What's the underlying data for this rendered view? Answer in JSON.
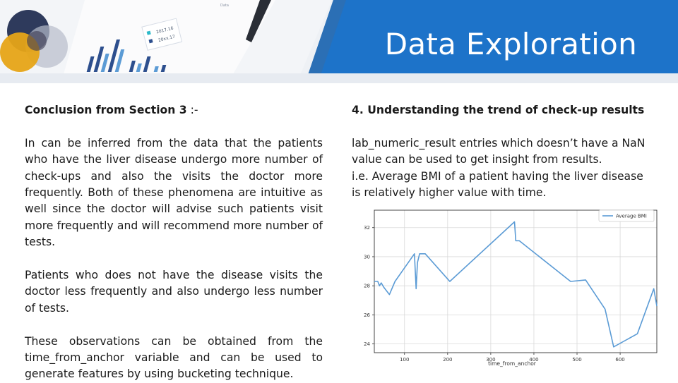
{
  "slide": {
    "title": "Data Exploration",
    "left": {
      "heading_bold": "Conclusion from Section 3",
      "heading_suffix": " :-",
      "para1": "In can be inferred from the data that the patients who have the liver disease undergo more number of check-ups and also the visits the doctor more frequently. Both of these phenomena are intuitive as well since the doctor will advise such patients visit more frequently and will recommend more number of tests.",
      "para2": "Patients who does not have the disease visits the doctor less frequently and also undergo less number of tests.",
      "para3": "These observations can be obtained from the time_from_anchor variable and can be used to generate features by using bucketing technique."
    },
    "right": {
      "heading": "4. Understanding the trend of check-up results",
      "para1": "lab_numeric_result entries which doesn’t have a NaN value can be used to get insight from results.",
      "para2": "i.e. Average BMI of a patient having the liver disease is relatively higher value with time."
    },
    "header_deco": {
      "card_label_1": "2017.16",
      "card_label_2": "20xx.17",
      "corner_text": "Data"
    }
  },
  "colors": {
    "banner_blue": "#1d73c9",
    "series": "#5b9bd5",
    "text": "#1a1a1a"
  },
  "chart_data": {
    "type": "line",
    "title": "",
    "xlabel": "time_from_anchor",
    "ylabel": "",
    "xlim": [
      30,
      685
    ],
    "ylim": [
      23.4,
      33.2
    ],
    "xticks": [
      100,
      200,
      300,
      400,
      500,
      600
    ],
    "yticks": [
      24,
      26,
      28,
      30,
      32
    ],
    "grid": true,
    "legend": "top-right",
    "series": [
      {
        "name": "Average BMI",
        "x": [
          30,
          38,
          42,
          46,
          52,
          65,
          78,
          123,
          127,
          130,
          135,
          148,
          205,
          355,
          358,
          366,
          485,
          520,
          565,
          585,
          640,
          678,
          685
        ],
        "y": [
          28.3,
          28.3,
          28.0,
          28.2,
          27.9,
          27.4,
          28.3,
          30.2,
          27.8,
          29.6,
          30.2,
          30.2,
          28.3,
          32.4,
          31.1,
          31.1,
          28.3,
          28.4,
          26.4,
          23.8,
          24.7,
          27.8,
          26.6
        ]
      }
    ]
  }
}
